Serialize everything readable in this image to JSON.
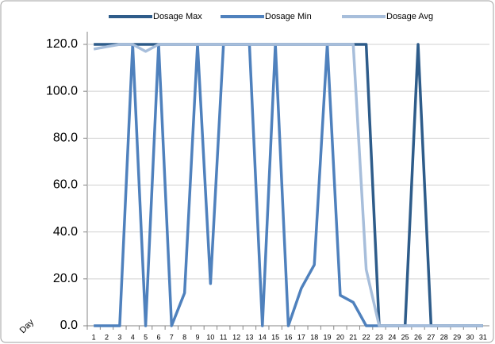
{
  "chart_data": {
    "type": "line",
    "x_label": "Day",
    "categories": [
      "1",
      "2",
      "3",
      "4",
      "5",
      "6",
      "7",
      "8",
      "9",
      "10",
      "11",
      "12",
      "13",
      "14",
      "15",
      "16",
      "17",
      "18",
      "19",
      "20",
      "21",
      "22",
      "23",
      "24",
      "25",
      "26",
      "27",
      "28",
      "29",
      "30",
      "31"
    ],
    "series": [
      {
        "name": "Dosage Max",
        "color": "#2e5c8a",
        "values": [
          120,
          120,
          120,
          120,
          120,
          120,
          120,
          120,
          120,
          120,
          120,
          120,
          120,
          120,
          120,
          120,
          120,
          120,
          120,
          120,
          120,
          120,
          0,
          0,
          0,
          120,
          0,
          0,
          0,
          0,
          0
        ]
      },
      {
        "name": "Dosage Min",
        "color": "#4f81bd",
        "values": [
          0,
          0,
          0,
          120,
          0,
          120,
          0,
          14,
          120,
          18,
          120,
          120,
          120,
          0,
          120,
          0,
          16,
          26,
          120,
          13,
          10,
          0,
          0,
          0,
          0,
          0,
          0,
          0,
          0,
          0,
          0
        ]
      },
      {
        "name": "Dosage Avg",
        "color": "#a7bedb",
        "values": [
          118,
          119,
          120,
          120,
          117,
          120,
          120,
          120,
          120,
          120,
          120,
          120,
          120,
          120,
          120,
          120,
          120,
          120,
          120,
          120,
          120,
          24,
          0,
          0,
          0,
          0,
          0,
          0,
          0,
          0,
          0
        ]
      }
    ],
    "ylim": [
      0,
      120
    ],
    "yticks": [
      {
        "value": 0,
        "label": "0.0"
      },
      {
        "value": 20,
        "label": "20.0"
      },
      {
        "value": 40,
        "label": "40.0"
      },
      {
        "value": 60,
        "label": "60.0"
      },
      {
        "value": 80,
        "label": "80.0"
      },
      {
        "value": 100,
        "label": "100.0"
      },
      {
        "value": 120,
        "label": "120.0"
      }
    ],
    "grid": true,
    "legend": "top"
  }
}
